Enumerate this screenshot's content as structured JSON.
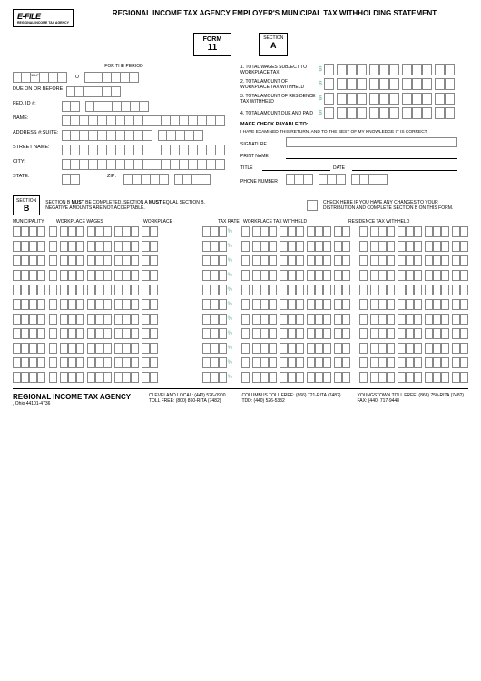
{
  "logo": {
    "main": "E-FILE",
    "sub": "REGIONAL INCOME TAX AGENCY"
  },
  "title": "REGIONAL INCOME TAX AGENCY EMPLOYER'S MUNICIPAL TAX WITHHOLDING STATEMENT",
  "form": {
    "label": "FORM",
    "number": "11"
  },
  "section_a": {
    "label": "SECTION",
    "letter": "A"
  },
  "period": {
    "label": "FOR THE PERIOD",
    "code": "11LF05A",
    "to": "TO"
  },
  "left_fields": {
    "due": "DUE ON OR BEFORE",
    "fed": "FED. ID #:",
    "name": "NAME:",
    "addr": "ADDRESS #:SUITE:",
    "street": "STREET NAME:",
    "city": "CITY:",
    "state": "STATE:",
    "zip": "ZIP:"
  },
  "totals": {
    "t1": "1. TOTAL WAGES SUBJECT TO WORKPLACE TAX",
    "t2": "2. TOTAL AMOUNT OF WORKPLACE TAX WITHHELD",
    "t3": "3. TOTAL AMOUNT OF RESIDENCE TAX WITHHELD",
    "t4": "4. TOTAL AMOUNT DUE AND PAID"
  },
  "payable": "MAKE CHECK PAYABLE TO:",
  "cert": "I HAVE EXAMINED THIS RETURN, AND TO THE BEST OF MY KNOWLEDGE IT IS CORRECT.",
  "sig": {
    "signature": "SIGNATURE",
    "print": "PRINT NAME",
    "title": "TITLE",
    "date": "DATE",
    "phone": "PHONE NUMBER"
  },
  "section_b": {
    "box_label": "SECTION",
    "box_letter": "B",
    "note": "SECTION B MUST BE COMPLETED. SECTION A MUST EQUAL SECTION B. NEGATIVE AMOUNTS ARE NOT ACCEPTABLE.",
    "check_note": "CHECK HERE IF YOU HAVE ANY CHANGES TO YOUR DISTRIBUTION AND COMPLETE SECTION B ON THIS FORM."
  },
  "grid": {
    "headers": {
      "muni": "MUNICIPALITY",
      "wages": "WORKPLACE WAGES",
      "workplace": "WORKPLACE",
      "rate": "TAX RATE",
      "wtax": "WORKPLACE TAX WITHHELD",
      "rtax": "RESIDENCE TAX WITHHELD"
    },
    "rows": 11,
    "pct": "%"
  },
  "footer": {
    "agency": "REGIONAL INCOME TAX AGENCY",
    "addr": ", Ohio 44101-4736",
    "phones": {
      "c1a": "CLEVELAND LOCAL: (440) 526-0900",
      "c1b": "TOLL FREE: (800) 860-RITA (7482)",
      "c2a": "COLUMBUS TOLL FREE: (866) 721-RITA (7482)",
      "c2b": "TDD: (440) 526-5332",
      "c3a": "YOUNGSTOWN TOLL FREE: (866) 750-RITA (7482)",
      "c3b": "FAX: (440) 717-9448"
    }
  },
  "colors": {
    "accent": "#6bb89a",
    "border": "#888888"
  }
}
